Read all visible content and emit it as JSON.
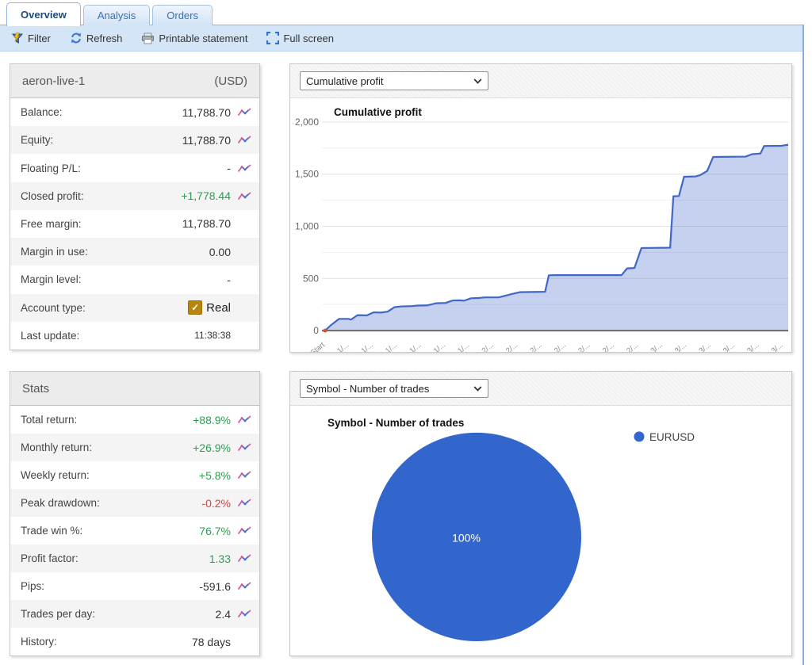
{
  "tabs": [
    {
      "label": "Overview",
      "active": true
    },
    {
      "label": "Analysis",
      "active": false
    },
    {
      "label": "Orders",
      "active": false
    }
  ],
  "toolbar": {
    "items": [
      {
        "label": "Filter",
        "icon": "filter-icon"
      },
      {
        "label": "Refresh",
        "icon": "refresh-icon"
      },
      {
        "label": "Printable statement",
        "icon": "printer-icon"
      },
      {
        "label": "Full screen",
        "icon": "fullscreen-icon"
      }
    ]
  },
  "account_panel": {
    "title": "aeron-live-1",
    "currency": "(USD)",
    "rows": [
      {
        "label": "Balance:",
        "value": "11,788.70",
        "color": "default",
        "chart_icon": true
      },
      {
        "label": "Equity:",
        "value": "11,788.70",
        "color": "default",
        "chart_icon": true
      },
      {
        "label": "Floating P/L:",
        "value": "-",
        "color": "default",
        "chart_icon": true
      },
      {
        "label": "Closed profit:",
        "value": "+1,778.44",
        "color": "green",
        "chart_icon": true
      },
      {
        "label": "Free margin:",
        "value": "11,788.70",
        "color": "default",
        "chart_icon": false
      },
      {
        "label": "Margin in use:",
        "value": "0.00",
        "color": "default",
        "chart_icon": false
      },
      {
        "label": "Margin level:",
        "value": "-",
        "color": "default",
        "chart_icon": false
      },
      {
        "label": "Account type:",
        "value": "Real",
        "color": "default",
        "chart_icon": false,
        "checkbox": true
      },
      {
        "label": "Last update:",
        "value": "11:38:38",
        "color": "default",
        "chart_icon": false,
        "small": true
      }
    ]
  },
  "stats_panel": {
    "title": "Stats",
    "rows": [
      {
        "label": "Total return:",
        "value": "+88.9%",
        "color": "green",
        "chart_icon": true
      },
      {
        "label": "Monthly return:",
        "value": "+26.9%",
        "color": "green",
        "chart_icon": true
      },
      {
        "label": "Weekly return:",
        "value": "+5.8%",
        "color": "green",
        "chart_icon": true
      },
      {
        "label": "Peak drawdown:",
        "value": "-0.2%",
        "color": "red",
        "chart_icon": true
      },
      {
        "label": "Trade win %:",
        "value": "76.7%",
        "color": "green",
        "chart_icon": true
      },
      {
        "label": "Profit factor:",
        "value": "1.33",
        "color": "green",
        "chart_icon": true
      },
      {
        "label": "Pips:",
        "value": "-591.6",
        "color": "default",
        "chart_icon": true
      },
      {
        "label": "Trades per day:",
        "value": "2.4",
        "color": "default",
        "chart_icon": true
      },
      {
        "label": "History:",
        "value": "78 days",
        "color": "default",
        "chart_icon": false
      }
    ]
  },
  "profit_section": {
    "dropdown_value": "Cumulative profit"
  },
  "symbol_section": {
    "dropdown_value": "Symbol - Number of trades"
  },
  "colors": {
    "accent_blue": "#3f67c8",
    "pie_blue": "#3366cc",
    "green": "#2c9e52",
    "red": "#c9473f",
    "toolbar_bg": "#d3e5f7"
  },
  "chart_data": [
    {
      "type": "area",
      "title": "Cumulative profit",
      "xlabel": "",
      "ylabel": "",
      "ylim": [
        0,
        2000
      ],
      "y_ticks": [
        0,
        500,
        1000,
        1500,
        2000
      ],
      "y_tick_labels": [
        "0",
        "500",
        "1,000",
        "1,500",
        "2,000"
      ],
      "minor_y_ticks": [
        250,
        750,
        1250,
        1750
      ],
      "x_tick_labels": [
        "Start",
        "1/...",
        "1/...",
        "1/...",
        "1/...",
        "1/...",
        "1/...",
        "2/...",
        "2/...",
        "2/...",
        "2/...",
        "2/...",
        "2/...",
        "2/...",
        "3/...",
        "3/...",
        "3/...",
        "3/...",
        "3/...",
        "3/..."
      ],
      "grid": true,
      "legend_position": "none",
      "series": [
        {
          "name": "Cumulative profit",
          "points": [
            [
              0.0,
              0
            ],
            [
              0.012,
              50
            ],
            [
              0.03,
              112
            ],
            [
              0.05,
              112
            ],
            [
              0.056,
              106
            ],
            [
              0.07,
              148
            ],
            [
              0.09,
              146
            ],
            [
              0.105,
              175
            ],
            [
              0.12,
              173
            ],
            [
              0.135,
              182
            ],
            [
              0.15,
              225
            ],
            [
              0.165,
              232
            ],
            [
              0.185,
              234
            ],
            [
              0.2,
              240
            ],
            [
              0.22,
              242
            ],
            [
              0.24,
              262
            ],
            [
              0.26,
              265
            ],
            [
              0.275,
              288
            ],
            [
              0.29,
              290
            ],
            [
              0.3,
              286
            ],
            [
              0.315,
              310
            ],
            [
              0.33,
              312
            ],
            [
              0.345,
              318
            ],
            [
              0.375,
              318
            ],
            [
              0.405,
              352
            ],
            [
              0.42,
              368
            ],
            [
              0.475,
              372
            ],
            [
              0.483,
              530
            ],
            [
              0.5,
              532
            ],
            [
              0.64,
              532
            ],
            [
              0.652,
              596
            ],
            [
              0.668,
              600
            ],
            [
              0.683,
              792
            ],
            [
              0.745,
              795
            ],
            [
              0.752,
              1288
            ],
            [
              0.764,
              1290
            ],
            [
              0.775,
              1475
            ],
            [
              0.8,
              1478
            ],
            [
              0.81,
              1490
            ],
            [
              0.825,
              1530
            ],
            [
              0.838,
              1665
            ],
            [
              0.908,
              1668
            ],
            [
              0.922,
              1692
            ],
            [
              0.94,
              1698
            ],
            [
              0.948,
              1770
            ],
            [
              0.985,
              1772
            ],
            [
              1.0,
              1782
            ]
          ]
        }
      ],
      "line_color": "#3f67c8",
      "fill_color": "rgba(63,103,200,0.30)",
      "start_marker_color": "#d94f3d"
    },
    {
      "type": "pie",
      "title": "Symbol - Number of trades",
      "slices": [
        {
          "label": "EURUSD",
          "value": 100,
          "display": "100%",
          "color": "#3366cc"
        }
      ],
      "legend": [
        {
          "label": "EURUSD",
          "color": "#3366cc"
        }
      ],
      "legend_position": "right"
    }
  ]
}
